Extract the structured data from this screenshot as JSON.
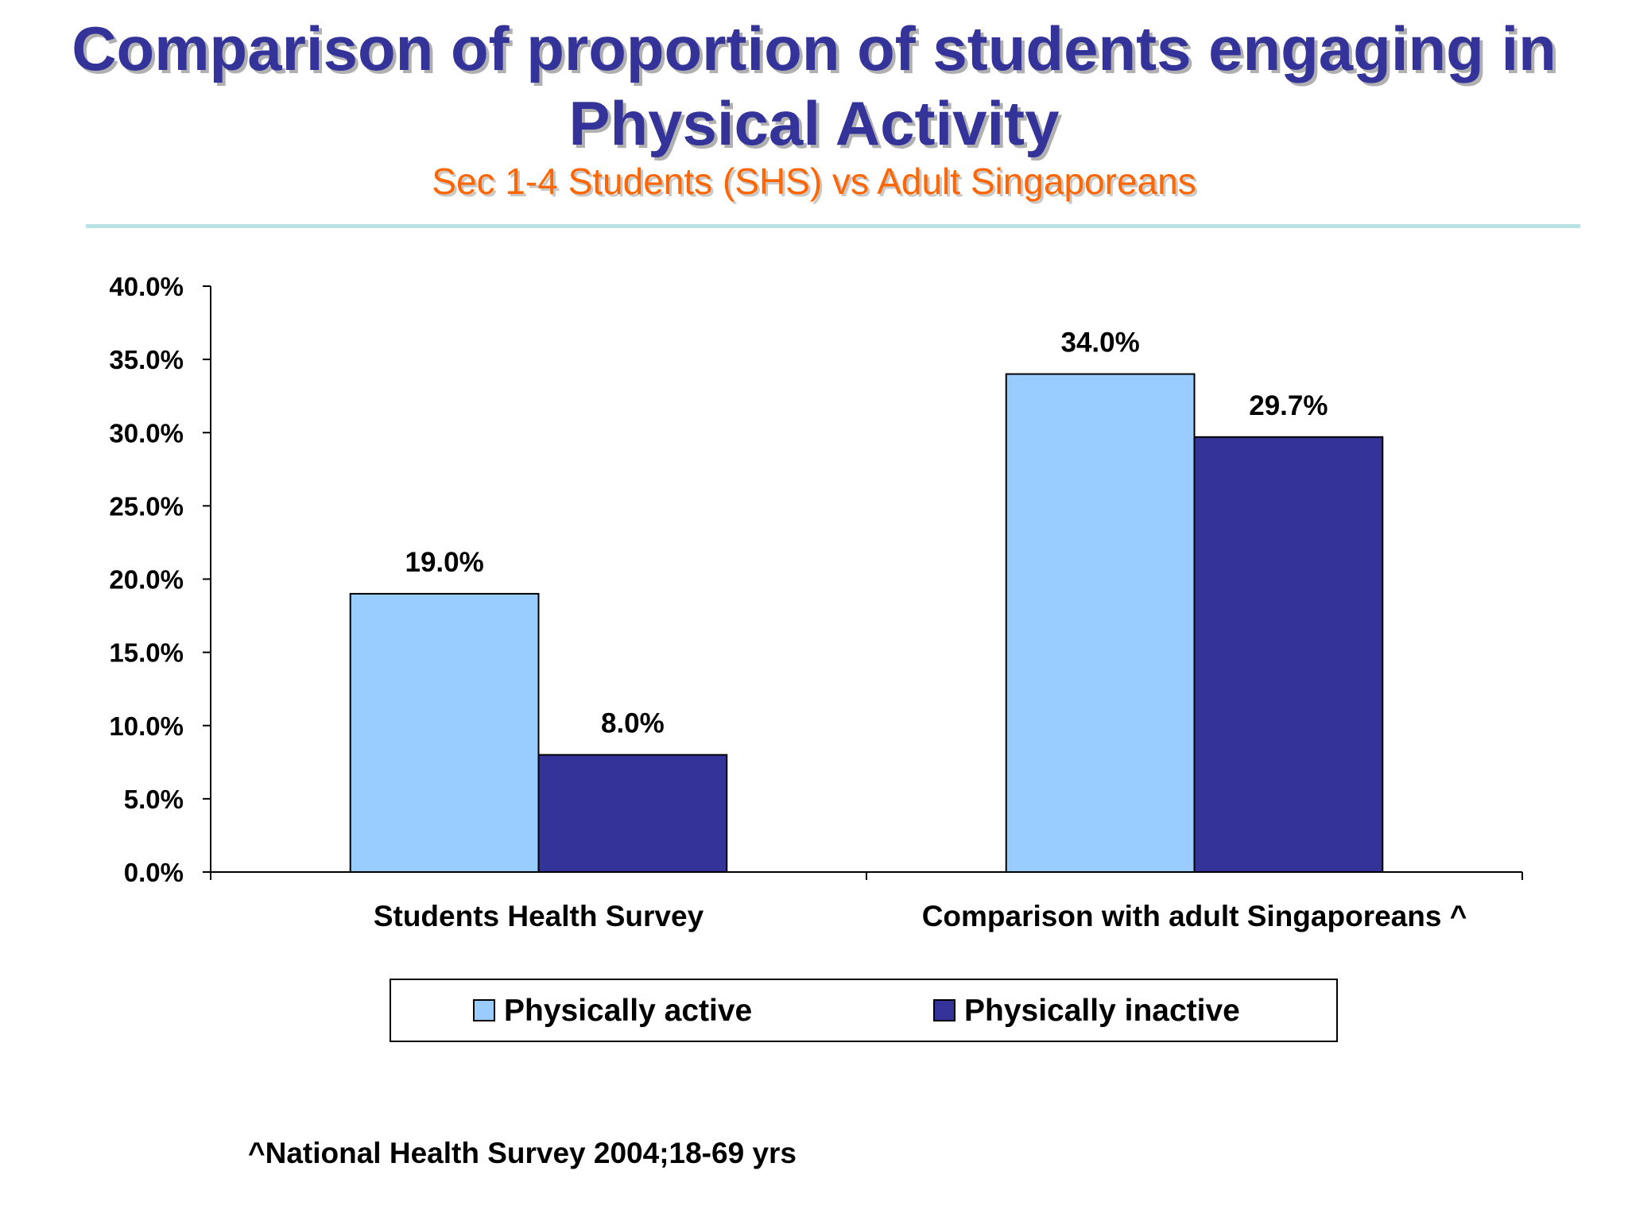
{
  "header": {
    "title": "Comparison of proportion of students engaging in Physical Activity",
    "subtitle": "Sec 1-4 Students (SHS) vs Adult Singaporeans"
  },
  "footnote": "^National Health Survey 2004;18-69 yrs",
  "colors": {
    "title": "#333399",
    "subtitle": "#ff6600",
    "divider": "#b8e2e3",
    "physically_active": "#99ccff",
    "physically_inactive": "#333399"
  },
  "chart_data": {
    "type": "bar",
    "categories": [
      "Students Health Survey",
      "Comparison with adult Singaporeans ^"
    ],
    "series": [
      {
        "name": "Physically active",
        "values": [
          19.0,
          34.0
        ],
        "labels": [
          "19.0%",
          "34.0%"
        ],
        "color": "#99ccff"
      },
      {
        "name": "Physically inactive",
        "values": [
          8.0,
          29.7
        ],
        "labels": [
          "8.0%",
          "29.7%"
        ],
        "color": "#333399"
      }
    ],
    "yticks": [
      "0.0%",
      "5.0%",
      "10.0%",
      "15.0%",
      "20.0%",
      "25.0%",
      "30.0%",
      "35.0%",
      "40.0%"
    ],
    "ylim": [
      0,
      40
    ],
    "grid": false,
    "legend_position": "bottom"
  }
}
